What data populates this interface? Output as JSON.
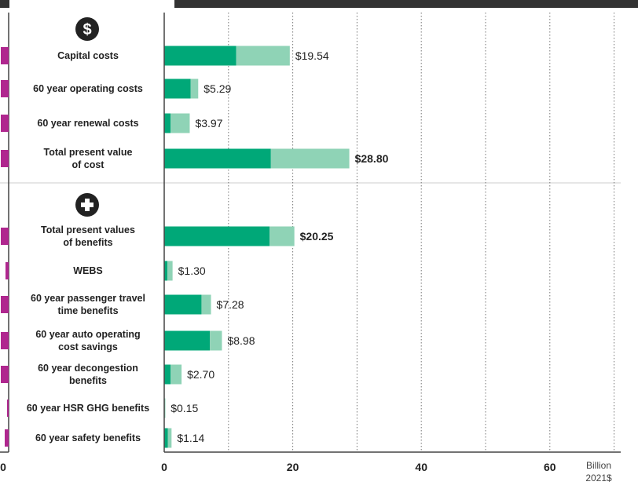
{
  "chart_data": {
    "type": "bar",
    "orientation": "horizontal",
    "stacked": true,
    "xlim": [
      0,
      70
    ],
    "x_ticks": [
      0,
      20,
      40,
      60
    ],
    "x_tick_labels": [
      "0",
      "20",
      "40",
      "60"
    ],
    "grid": "vertical dotted lines every 10",
    "unit_label": [
      "Billion",
      "2021$"
    ],
    "colors": {
      "dark": "#00a878",
      "light": "#8fd3b6",
      "left_panel": "#b0278f",
      "header_bar": "#333333",
      "icon": "#222222"
    },
    "groups": [
      {
        "icon": "dollar-icon",
        "icon_glyph": "$",
        "categories": [
          0,
          1,
          2,
          3
        ]
      },
      {
        "icon": "plus-icon",
        "icon_glyph": "+",
        "categories": [
          4,
          5,
          6,
          7,
          8,
          9,
          10
        ]
      }
    ],
    "categories": [
      [
        "Capital costs"
      ],
      [
        "60 year operating costs"
      ],
      [
        "60 year renewal costs"
      ],
      [
        "Total present value",
        "of cost"
      ],
      [
        "Total present values",
        "of benefits"
      ],
      [
        "WEBS"
      ],
      [
        "60 year passenger travel",
        "time benefits"
      ],
      [
        "60 year auto operating",
        "cost savings"
      ],
      [
        "60 year decongestion",
        "benefits"
      ],
      [
        "60 year HSR GHG benefits"
      ],
      [
        "60 year safety benefits"
      ]
    ],
    "series": [
      {
        "color_role": "dark",
        "values": [
          11.2,
          4.1,
          1.0,
          16.6,
          16.4,
          0.5,
          5.8,
          7.1,
          1.0,
          0.05,
          0.55
        ]
      },
      {
        "color_role": "light",
        "values": [
          8.34,
          1.19,
          2.97,
          12.2,
          3.85,
          0.8,
          1.48,
          1.88,
          1.7,
          0.1,
          0.59
        ]
      }
    ],
    "totals": [
      19.54,
      5.29,
      3.97,
      28.8,
      20.25,
      1.3,
      7.28,
      8.98,
      2.7,
      0.15,
      1.14
    ],
    "total_labels": [
      "$19.54",
      "$5.29",
      "$3.97",
      "$28.80",
      "$20.25",
      "$1.30",
      "$7.28",
      "$8.98",
      "$2.70",
      "$0.15",
      "$1.14"
    ],
    "bold_categories": [
      3,
      4
    ],
    "left_panel_values": [
      1,
      1,
      1,
      1,
      1,
      0.4,
      1,
      1,
      1,
      0.2,
      0.5
    ],
    "left_panel_tick_label": "0"
  }
}
